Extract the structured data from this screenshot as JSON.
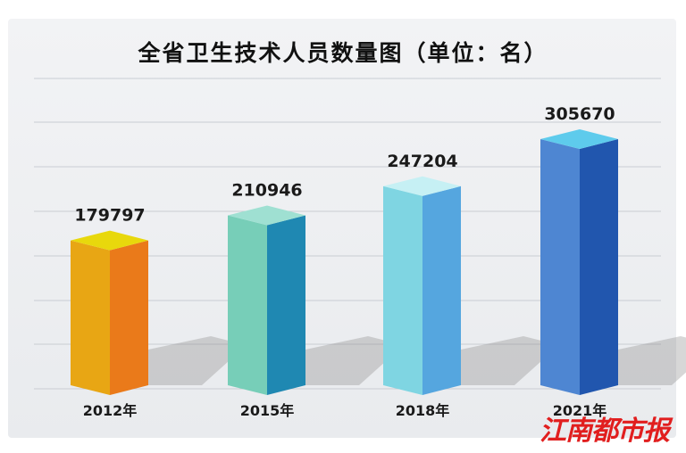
{
  "chart_data": {
    "type": "bar",
    "title": "全省卫生技术人员数量图（单位：名）",
    "categories": [
      "2012年",
      "2015年",
      "2018年",
      "2021年"
    ],
    "values": [
      179797,
      210946,
      247204,
      305670
    ],
    "value_labels": [
      "179797",
      "210946",
      "247204",
      "305670"
    ],
    "grid": true,
    "colors": [
      {
        "top": "#e8d80c",
        "front": "#e8a614",
        "side": "#ea7a1a"
      },
      {
        "top": "#9fe0d2",
        "front": "#77ceb8",
        "side": "#1f88b2"
      },
      {
        "top": "#c6f0f4",
        "front": "#7fd5e2",
        "side": "#55a6df"
      },
      {
        "top": "#5ecbec",
        "front": "#4e86d2",
        "side": "#2156ae"
      }
    ]
  },
  "watermark": "江南都市报"
}
